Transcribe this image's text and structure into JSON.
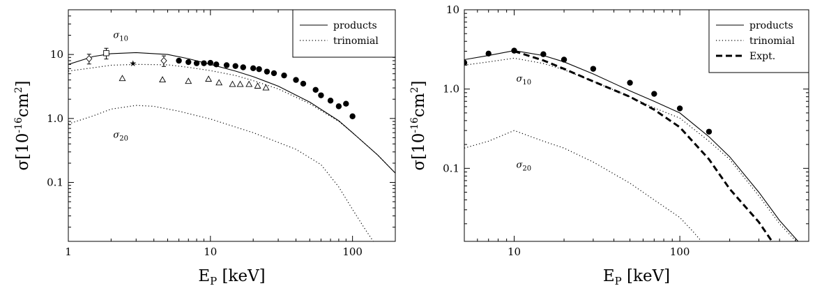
{
  "chart_data": [
    {
      "type": "line",
      "xlabel_main": "E",
      "xlabel_sub": "P",
      "xlabel_unit": "[keV]",
      "ylabel_main": "σ[10",
      "ylabel_exp": "-16",
      "ylabel_unit": "cm",
      "ylabel_exp2": "2",
      "ylabel_close": "]",
      "xscale": "log",
      "yscale": "log",
      "xlim": [
        1,
        200
      ],
      "ylim": [
        0.012,
        50
      ],
      "x_ticks": [
        1,
        10,
        100
      ],
      "x_tick_labels": [
        "1",
        "10",
        "100"
      ],
      "y_ticks": [
        0.1,
        1,
        10
      ],
      "y_tick_labels": [
        "0.1",
        "1.0",
        "10"
      ],
      "legend_position": "top-right",
      "annotations": [
        {
          "symbol": "σ",
          "sub": "10",
          "x": 2.0,
          "y": 20
        },
        {
          "symbol": "σ",
          "sub": "20",
          "x": 2.0,
          "y": 0.55
        }
      ],
      "series": [
        {
          "name": "products",
          "style": "solid",
          "x": [
            1,
            1.5,
            2,
            3,
            5,
            7,
            10,
            15,
            20,
            30,
            50,
            80,
            100,
            150,
            200
          ],
          "y": [
            7.0,
            9.3,
            10.3,
            10.7,
            10.0,
            8.6,
            7.0,
            5.5,
            4.5,
            3.2,
            1.8,
            0.92,
            0.6,
            0.27,
            0.14
          ]
        },
        {
          "name": "trinomial",
          "style": "dotted",
          "x": [
            1,
            1.5,
            2,
            3,
            5,
            7,
            10,
            15,
            20,
            30,
            50,
            80,
            100,
            150,
            200
          ],
          "y": [
            5.5,
            6.2,
            6.8,
            7.0,
            6.9,
            6.3,
            5.6,
            4.7,
            3.9,
            2.9,
            1.7,
            0.9,
            0.6,
            0.27,
            0.14
          ]
        },
        {
          "name": "",
          "style": "dotted",
          "x": [
            1,
            1.5,
            2,
            3,
            4,
            6,
            10,
            20,
            40,
            60,
            80,
            100,
            120,
            140
          ],
          "y": [
            0.82,
            1.1,
            1.4,
            1.6,
            1.55,
            1.3,
            0.98,
            0.6,
            0.33,
            0.19,
            0.085,
            0.038,
            0.02,
            0.012
          ]
        }
      ],
      "points": [
        {
          "marker": "filled-circle",
          "x": [
            6,
            7,
            8,
            9,
            10,
            11,
            13,
            15,
            17,
            20,
            22,
            25,
            28,
            33,
            40,
            45,
            55,
            60,
            70,
            80,
            90,
            100
          ],
          "y": [
            8.0,
            7.6,
            7.3,
            7.3,
            7.4,
            7.0,
            6.8,
            6.6,
            6.3,
            6.1,
            5.9,
            5.4,
            5.1,
            4.7,
            4.0,
            3.5,
            2.8,
            2.3,
            1.9,
            1.55,
            1.7,
            1.08
          ]
        },
        {
          "marker": "open-triangle",
          "x": [
            2.4,
            4.6,
            7.0,
            9.7,
            11.5,
            14.3,
            16.2,
            18.7,
            21.5,
            24.6
          ],
          "y": [
            4.2,
            4.0,
            3.8,
            4.1,
            3.6,
            3.4,
            3.4,
            3.4,
            3.2,
            3.0
          ]
        },
        {
          "marker": "open-diamond",
          "x": [
            1.4,
            4.7
          ],
          "y": [
            8.6,
            8.0
          ],
          "yerr": [
            1.5,
            1.5
          ]
        },
        {
          "marker": "open-square",
          "x": [
            1.85
          ],
          "y": [
            10.5
          ],
          "yerr": [
            2.0
          ]
        },
        {
          "marker": "star",
          "x": [
            2.85
          ],
          "y": [
            7.2
          ]
        }
      ]
    },
    {
      "type": "line",
      "xlabel_main": "E",
      "xlabel_sub": "P",
      "xlabel_unit": "[keV]",
      "ylabel_main": "σ[10",
      "ylabel_exp": "-16",
      "ylabel_unit": "cm",
      "ylabel_exp2": "2",
      "ylabel_close": "]",
      "xscale": "log",
      "yscale": "log",
      "xlim": [
        5,
        600
      ],
      "ylim": [
        0.012,
        10
      ],
      "x_ticks": [
        10,
        100
      ],
      "x_tick_labels": [
        "10",
        "100"
      ],
      "y_ticks": [
        0.1,
        1,
        10
      ],
      "y_tick_labels": [
        "0.1",
        "1.0",
        "10"
      ],
      "legend_position": "top-right",
      "annotations": [
        {
          "symbol": "σ",
          "sub": "10",
          "x": 10,
          "y": 1.35
        },
        {
          "symbol": "σ",
          "sub": "20",
          "x": 10,
          "y": 0.11
        }
      ],
      "series": [
        {
          "name": "products",
          "style": "solid",
          "x": [
            5,
            7,
            10,
            15,
            20,
            30,
            50,
            70,
            100,
            150,
            200,
            300,
            400,
            600
          ],
          "y": [
            2.35,
            2.65,
            3.05,
            2.65,
            2.2,
            1.55,
            0.95,
            0.7,
            0.5,
            0.25,
            0.14,
            0.05,
            0.022,
            0.0085
          ]
        },
        {
          "name": "trinomial",
          "style": "dotted",
          "x": [
            5,
            7,
            10,
            15,
            20,
            30,
            50,
            70,
            100,
            150,
            200,
            300,
            400,
            600
          ],
          "y": [
            2.0,
            2.2,
            2.45,
            2.1,
            1.75,
            1.25,
            0.8,
            0.58,
            0.43,
            0.22,
            0.13,
            0.045,
            0.02,
            0.0082
          ]
        },
        {
          "name": "",
          "style": "dotted",
          "x": [
            5,
            7,
            10,
            15,
            20,
            30,
            50,
            70,
            100,
            120,
            135
          ],
          "y": [
            0.18,
            0.22,
            0.3,
            0.22,
            0.18,
            0.12,
            0.065,
            0.04,
            0.024,
            0.016,
            0.012
          ]
        },
        {
          "name": "Expt.",
          "style": "dashed",
          "x": [
            10,
            15,
            20,
            30,
            50,
            70,
            100,
            150,
            200,
            300,
            360
          ],
          "y": [
            3.0,
            2.3,
            1.8,
            1.25,
            0.8,
            0.55,
            0.33,
            0.13,
            0.055,
            0.021,
            0.012
          ]
        }
      ],
      "points": [
        {
          "marker": "filled-circle",
          "x": [
            5,
            7,
            10,
            15,
            20,
            30,
            50,
            70,
            100,
            150
          ],
          "y": [
            2.15,
            2.8,
            3.05,
            2.75,
            2.35,
            1.8,
            1.2,
            0.87,
            0.57,
            0.29
          ]
        }
      ]
    }
  ]
}
